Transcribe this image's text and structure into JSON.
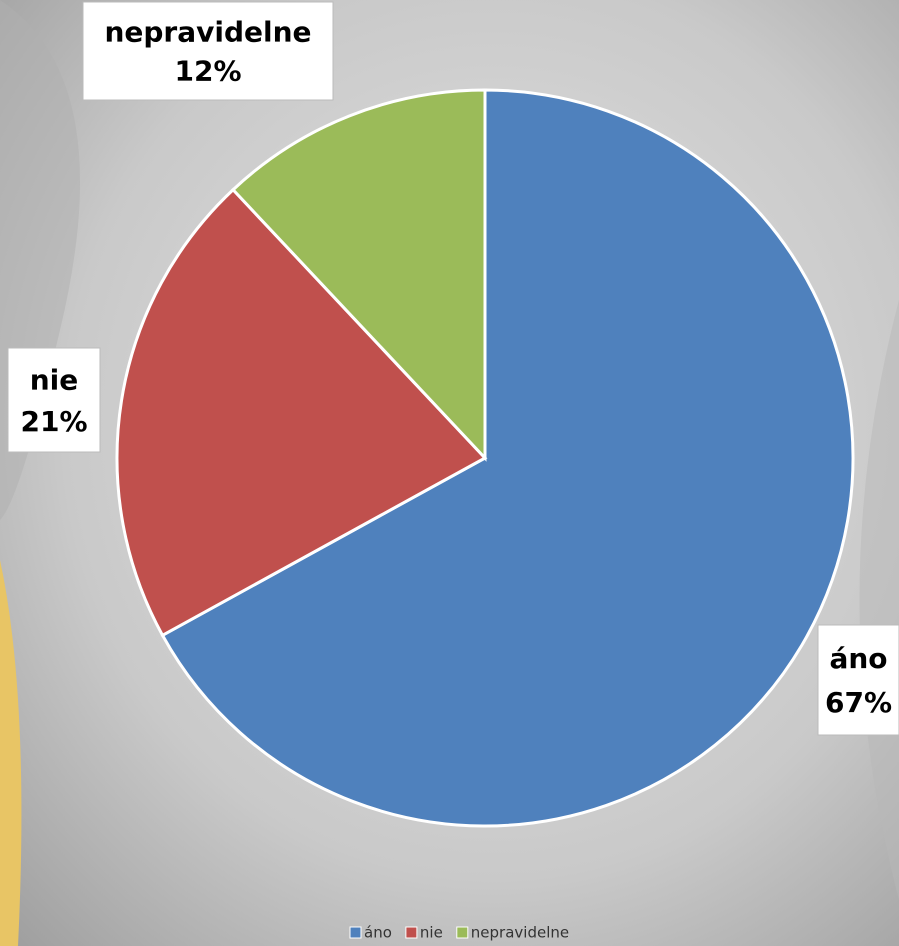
{
  "chart_data": {
    "type": "pie",
    "categories": [
      "áno",
      "nie",
      "nepravidelne"
    ],
    "values": [
      67,
      21,
      12
    ],
    "value_labels": [
      "67%",
      "21%",
      "12%"
    ],
    "colors": [
      "#4f81bd",
      "#c0504d",
      "#9bbb59"
    ],
    "legend": "bottom"
  }
}
